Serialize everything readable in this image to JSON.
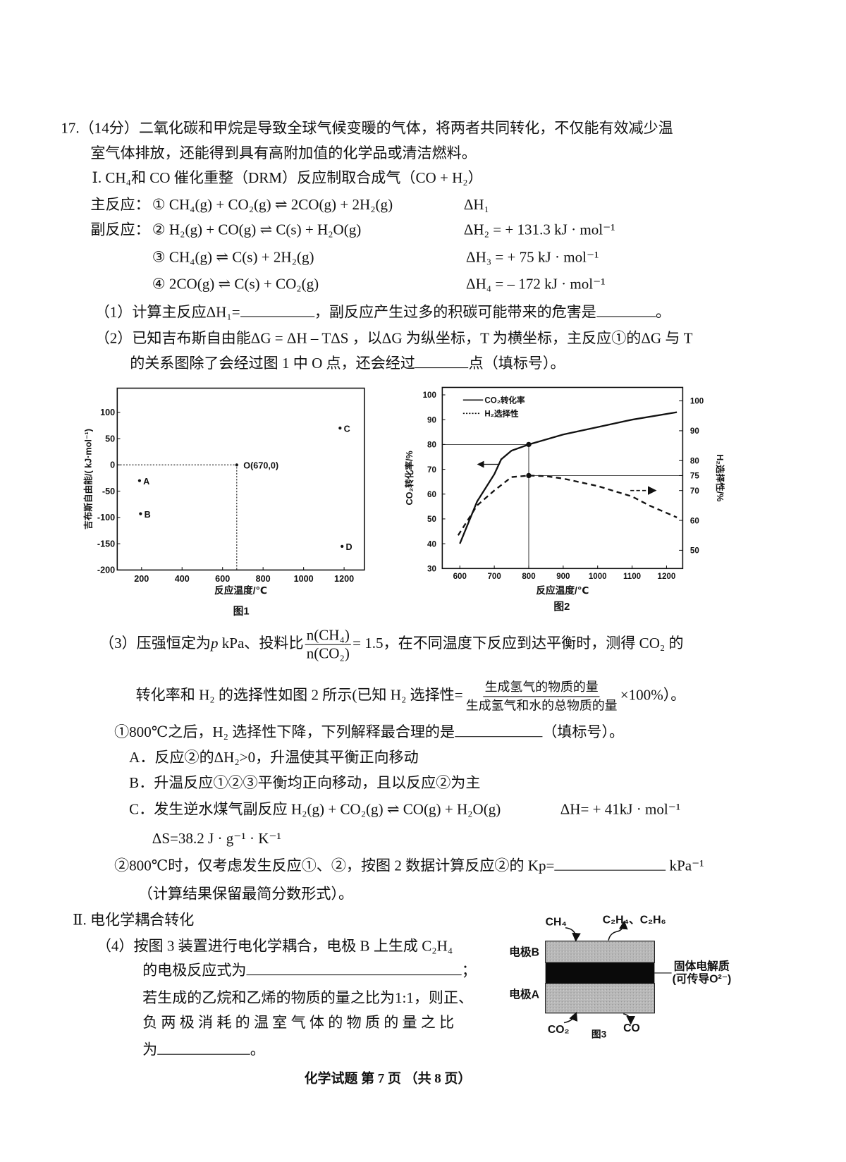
{
  "question": {
    "number": "17.",
    "score": "（14分）",
    "intro_1": "二氧化碳和甲烷是导致全球气候变暖的气体，将两者共同转化，不仅能有效减少温",
    "intro_2": "室气体排放，还能得到具有高附加值的化学品或清洁燃料。"
  },
  "part1": {
    "heading": "Ⅰ. CH₄和 CO 催化重整（DRM）反应制取合成气（CO + H₂）",
    "main_label": "主反应：",
    "side_label": "副反应：",
    "reactions": [
      {
        "eq": "① CH₄(g) + CO₂(g) ⇌ 2CO(g) + 2H₂(g)",
        "dh": "ΔH₁"
      },
      {
        "eq": "② H₂(g) + CO(g) ⇌ C(s) + H₂O(g)",
        "dh": "ΔH₂ = + 131.3 kJ · mol⁻¹"
      },
      {
        "eq": "③ CH₄(g) ⇌ C(s) + 2H₂(g)",
        "dh": "ΔH₃ = + 75 kJ · mol⁻¹"
      },
      {
        "eq": "④ 2CO(g) ⇌ C(s) + CO₂(g)",
        "dh": "ΔH₄ = – 172 kJ · mol⁻¹"
      }
    ],
    "q1_a": "（1）计算主反应ΔH₁=",
    "q1_b": "，副反应产生过多的积碳可能带来的危害是",
    "q1_c": "。",
    "q2_a": "（2）已知吉布斯自由能ΔG = ΔH – TΔS ，以ΔG 为纵坐标，T 为横坐标，主反应①的ΔG 与 T",
    "q2_b": "的关系图除了会经过图 1 中 O 点，还会经过",
    "q2_c": "点（填标号）。",
    "q3_a": "（3）压强恒定为",
    "q3_p": "p",
    "q3_b": " kPa、投料比",
    "q3_num": "n(CH₄)",
    "q3_den": "n(CO₂)",
    "q3_c": "= 1.5，在不同温度下反应到达平衡时，测得 CO₂ 的",
    "q3_d": "转化率和 H₂ 的选择性如图 2 所示(已知 H₂ 选择性=",
    "q3_sel_num": "生成氢气的物质的量",
    "q3_sel_den": "生成氢气和水的总物质的量",
    "q3_e": "×100%）。",
    "q3_1_a": "①800℃之后，H₂ 选择性下降，下列解释最合理的是",
    "q3_1_b": "（填标号）。",
    "options": [
      "A．反应②的ΔH₂>0，升温使其平衡正向移动",
      "B．升温反应①②③平衡均正向移动，且以反应②为主",
      "C．发生逆水煤气副反应 H₂(g) + CO₂(g) ⇌ CO(g) + H₂O(g)"
    ],
    "option_c_dh": "ΔH= + 41kJ · mol⁻¹",
    "option_c_ds": "ΔS=38.2 J · g⁻¹ · K⁻¹",
    "q3_2_a": "②800℃时，仅考虑发生反应①、②，按图 2 数据计算反应②的 Kp=",
    "q3_2_b": "kPa⁻¹",
    "q3_2_c": "（计算结果保留最简分数形式）。"
  },
  "part2": {
    "heading": "Ⅱ. 电化学耦合转化",
    "q4_a": "（4）按图 3 装置进行电化学耦合，电极 B 上生成 C₂H₄",
    "q4_b": "的电极反应式为",
    "q4_b_end": "；",
    "q4_c": "若生成的乙烷和乙烯的物质的量之比为1:1，则正、",
    "q4_d": "负 两 极 消 耗 的 温 室 气 体 的 物 质 的 量 之 比",
    "q4_e": "为",
    "q4_e_end": "。"
  },
  "figure3": {
    "caption": "图3",
    "in_top": "CH₄",
    "out_top": "C₂H₄、C₂H₆",
    "electrode_b": "电极B",
    "electrode_a": "电极A",
    "electrolyte_1": "固体电解质",
    "electrolyte_2": "(可传导O²⁻)",
    "in_bottom": "CO₂",
    "out_bottom": "CO"
  },
  "footer": "化学试题 第 7 页 （共 8 页）",
  "chart_data": [
    {
      "type": "scatter",
      "title": "图1",
      "xlabel": "反应温度/℃",
      "ylabel": "吉布斯自由能/( kJ·mol⁻¹)",
      "xlim": [
        80,
        1300
      ],
      "ylim": [
        -200,
        146
      ],
      "xticks": [
        200,
        400,
        600,
        800,
        1000,
        1200
      ],
      "yticks": [
        100,
        50,
        0,
        -50,
        -100,
        -150,
        -200
      ],
      "points": [
        {
          "label": "A",
          "x": 190,
          "y": -30
        },
        {
          "label": "B",
          "x": 195,
          "y": -93
        },
        {
          "label": "C",
          "x": 1180,
          "y": 70
        },
        {
          "label": "D",
          "x": 1190,
          "y": -155
        },
        {
          "label": "O(670,0)",
          "x": 670,
          "y": 0
        }
      ],
      "grid": false
    },
    {
      "type": "line",
      "title": "图2",
      "xlabel": "反应温度/℃",
      "ylabel_left": "CO₂转化率/%",
      "ylabel_right": "H₂选择性/%",
      "xlim": [
        549,
        1247
      ],
      "ylim_left": [
        30,
        103
      ],
      "ylim_right": [
        43.9,
        104.5
      ],
      "xticks": [
        600,
        700,
        800,
        900,
        1000,
        1100,
        1200
      ],
      "yticks_left": [
        30,
        40,
        50,
        60,
        70,
        80,
        90,
        100
      ],
      "yticks_right": [
        50,
        60,
        70,
        75,
        80,
        90,
        100
      ],
      "legend": "top-left",
      "grid": false,
      "series": [
        {
          "name": "CO₂转化率",
          "axis": "left",
          "style": "solid",
          "x": [
            600,
            650,
            700,
            720,
            750,
            800,
            900,
            1000,
            1100,
            1230
          ],
          "y": [
            40,
            57,
            68,
            74,
            77.5,
            80,
            84,
            87,
            90,
            93
          ]
        },
        {
          "name": "H₂选择性",
          "axis": "right",
          "style": "dashed",
          "x": [
            595,
            650,
            700,
            750,
            800,
            850,
            900,
            1000,
            1100,
            1150,
            1230
          ],
          "y": [
            55,
            65,
            70,
            74.5,
            75,
            74.8,
            74,
            71.5,
            68,
            65,
            61
          ]
        }
      ],
      "markers": [
        {
          "x": 800,
          "y": 80,
          "axis": "left"
        },
        {
          "x": 800,
          "y": 75,
          "axis": "right"
        }
      ]
    }
  ]
}
